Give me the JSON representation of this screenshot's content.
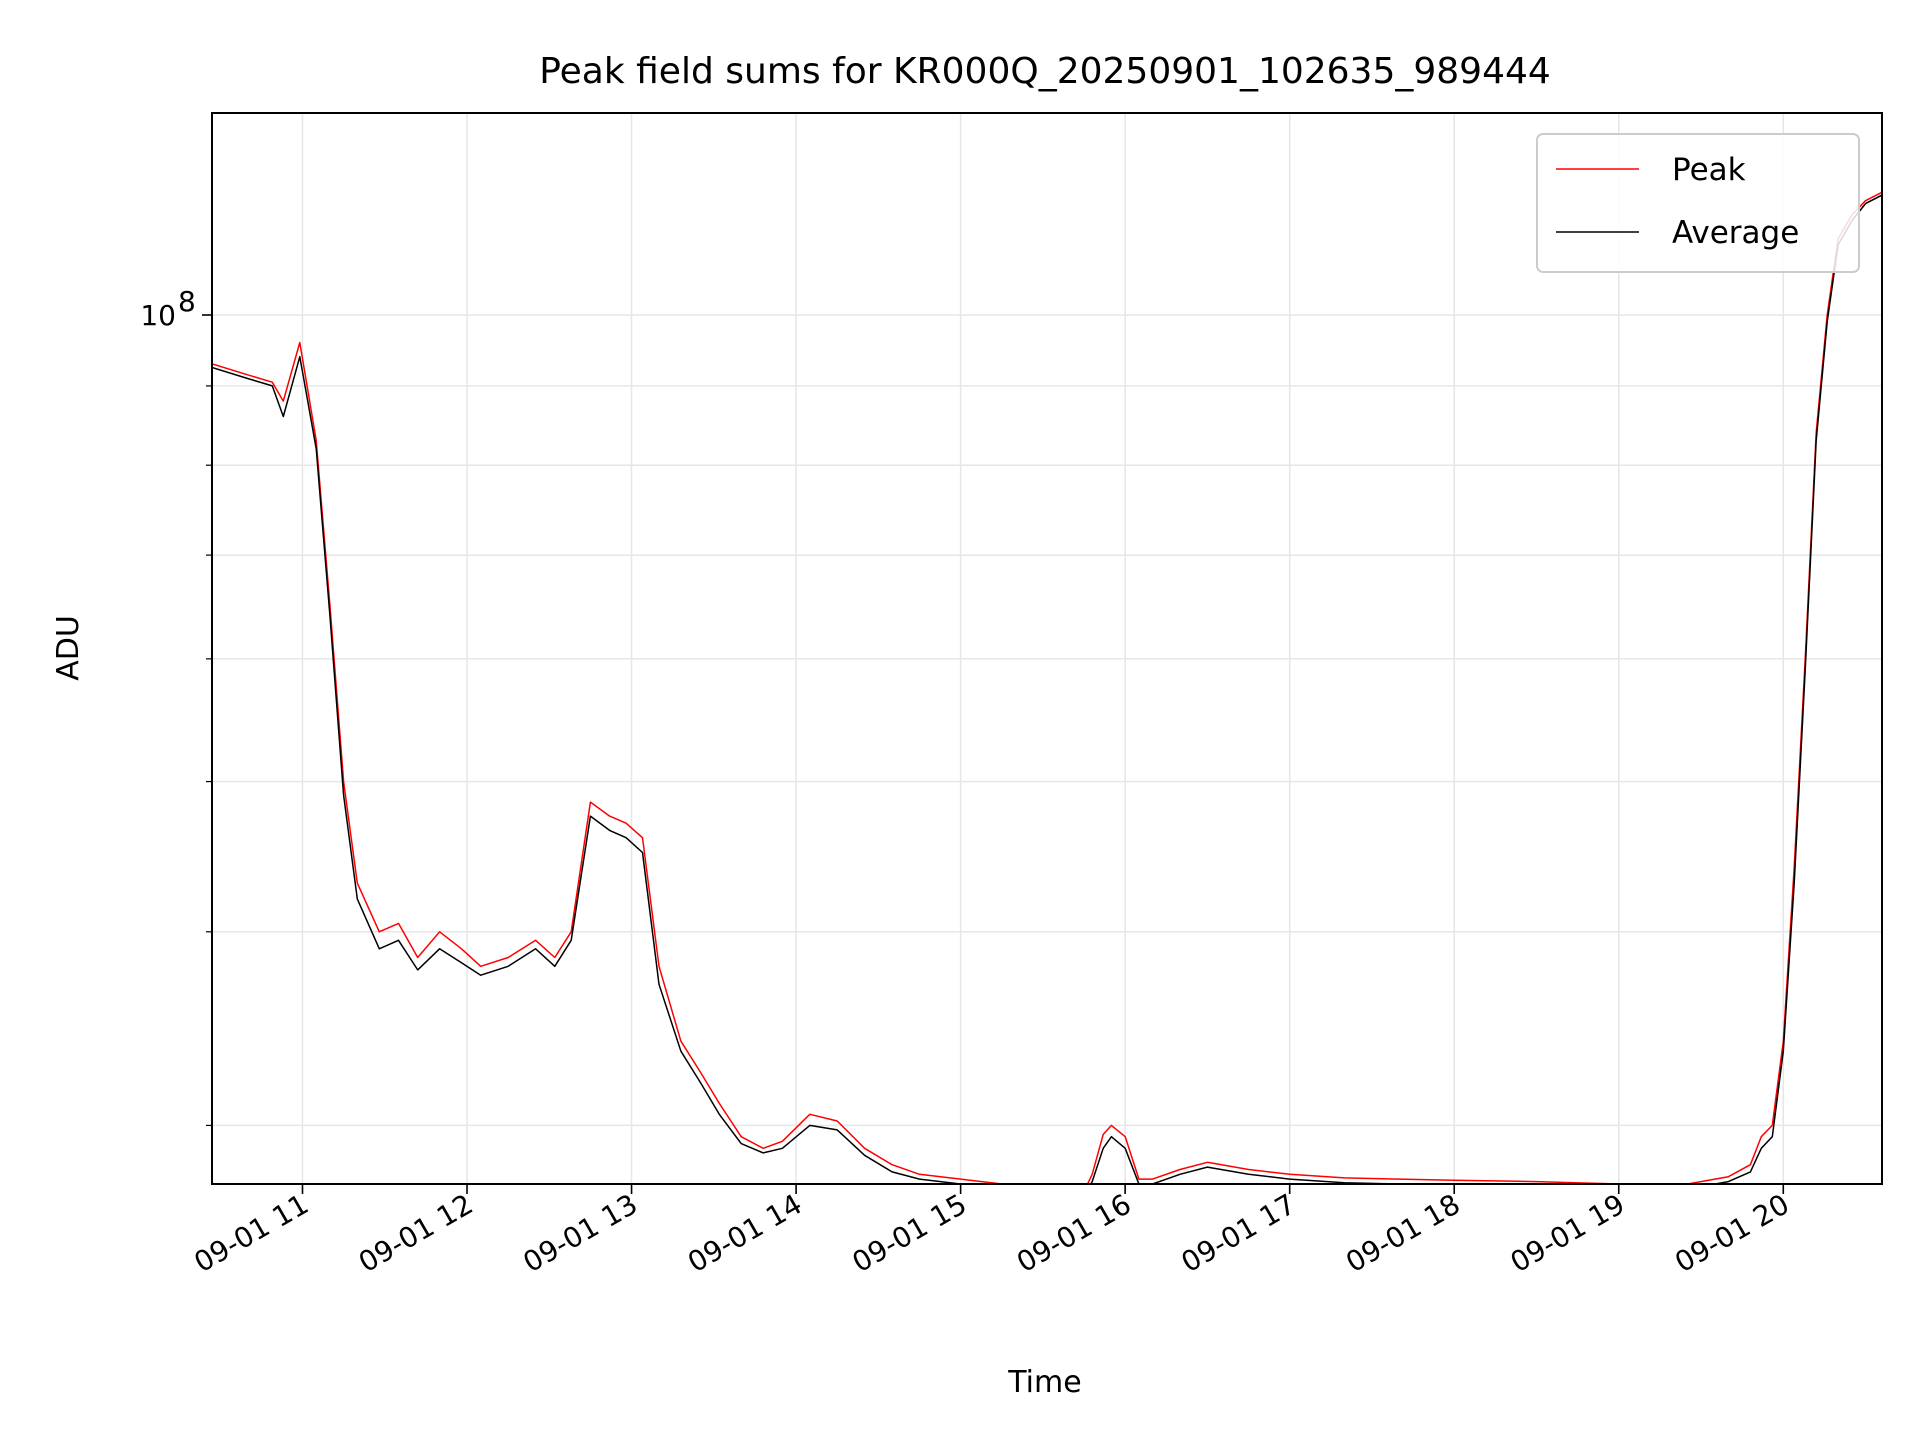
{
  "chart_data": {
    "type": "line",
    "title": "Peak field sums for KR000Q_20250901_102635_989444",
    "xlabel": "Time",
    "ylabel": "ADU",
    "yscale": "log",
    "ylim": [
      27500000,
      135000000
    ],
    "xlim": [
      "2025-09-01 10:27",
      "2025-09-01 20:36"
    ],
    "grid": true,
    "legend_position": "top-right",
    "x_ticks": [
      "09-01 11",
      "09-01 12",
      "09-01 13",
      "09-01 14",
      "09-01 15",
      "09-01 16",
      "09-01 17",
      "09-01 18",
      "09-01 19",
      "09-01 20"
    ],
    "y_ticks": [
      {
        "value": 100000000,
        "base": "10",
        "exp": "8"
      }
    ],
    "y_minor_ticks": [
      30000000,
      40000000,
      50000000,
      60000000,
      70000000,
      80000000,
      90000000
    ],
    "series": [
      {
        "name": "Peak",
        "color": "#ff0000",
        "x": [
          "2025-09-01 10:27",
          "2025-09-01 10:40",
          "2025-09-01 10:49",
          "2025-09-01 10:53",
          "2025-09-01 10:59",
          "2025-09-01 11:05",
          "2025-09-01 11:10",
          "2025-09-01 11:15",
          "2025-09-01 11:20",
          "2025-09-01 11:28",
          "2025-09-01 11:35",
          "2025-09-01 11:42",
          "2025-09-01 11:50",
          "2025-09-01 11:58",
          "2025-09-01 12:05",
          "2025-09-01 12:15",
          "2025-09-01 12:25",
          "2025-09-01 12:32",
          "2025-09-01 12:38",
          "2025-09-01 12:45",
          "2025-09-01 12:52",
          "2025-09-01 12:58",
          "2025-09-01 13:04",
          "2025-09-01 13:10",
          "2025-09-01 13:18",
          "2025-09-01 13:25",
          "2025-09-01 13:32",
          "2025-09-01 13:40",
          "2025-09-01 13:48",
          "2025-09-01 13:55",
          "2025-09-01 14:05",
          "2025-09-01 14:15",
          "2025-09-01 14:25",
          "2025-09-01 14:35",
          "2025-09-01 14:45",
          "2025-09-01 15:00",
          "2025-09-01 15:15",
          "2025-09-01 15:30",
          "2025-09-01 15:40",
          "2025-09-01 15:45",
          "2025-09-01 15:48",
          "2025-09-01 15:52",
          "2025-09-01 15:55",
          "2025-09-01 16:00",
          "2025-09-01 16:05",
          "2025-09-01 16:10",
          "2025-09-01 16:20",
          "2025-09-01 16:30",
          "2025-09-01 16:45",
          "2025-09-01 17:00",
          "2025-09-01 17:20",
          "2025-09-01 17:40",
          "2025-09-01 18:00",
          "2025-09-01 18:30",
          "2025-09-01 19:00",
          "2025-09-01 19:15",
          "2025-09-01 19:20",
          "2025-09-01 19:30",
          "2025-09-01 19:40",
          "2025-09-01 19:48",
          "2025-09-01 19:52",
          "2025-09-01 19:56",
          "2025-09-01 20:00",
          "2025-09-01 20:04",
          "2025-09-01 20:08",
          "2025-09-01 20:12",
          "2025-09-01 20:16",
          "2025-09-01 20:20",
          "2025-09-01 20:25",
          "2025-09-01 20:30",
          "2025-09-01 20:36"
        ],
        "y": [
          93000000,
          91500000,
          90500000,
          88000000,
          96000000,
          83000000,
          65000000,
          50000000,
          43000000,
          40000000,
          40500000,
          38500000,
          40000000,
          39000000,
          38000000,
          38500000,
          39500000,
          38500000,
          40000000,
          48500000,
          47500000,
          47000000,
          46000000,
          38000000,
          34000000,
          32500000,
          31000000,
          29500000,
          29000000,
          29300000,
          30500000,
          30200000,
          29000000,
          28300000,
          27900000,
          27700000,
          27500000,
          27400000,
          27300000,
          27200000,
          27900000,
          29600000,
          30000000,
          29500000,
          27700000,
          27700000,
          28100000,
          28400000,
          28100000,
          27900000,
          27750000,
          27700000,
          27650000,
          27600000,
          27500000,
          27300000,
          27400000,
          27600000,
          27800000,
          28300000,
          29500000,
          30000000,
          34000000,
          44000000,
          60000000,
          84000000,
          100000000,
          112000000,
          116000000,
          118500000,
          120000000
        ]
      },
      {
        "name": "Average",
        "color": "#000000",
        "x": [
          "2025-09-01 10:27",
          "2025-09-01 10:40",
          "2025-09-01 10:49",
          "2025-09-01 10:53",
          "2025-09-01 10:59",
          "2025-09-01 11:05",
          "2025-09-01 11:10",
          "2025-09-01 11:15",
          "2025-09-01 11:20",
          "2025-09-01 11:28",
          "2025-09-01 11:35",
          "2025-09-01 11:42",
          "2025-09-01 11:50",
          "2025-09-01 11:58",
          "2025-09-01 12:05",
          "2025-09-01 12:15",
          "2025-09-01 12:25",
          "2025-09-01 12:32",
          "2025-09-01 12:38",
          "2025-09-01 12:45",
          "2025-09-01 12:52",
          "2025-09-01 12:58",
          "2025-09-01 13:04",
          "2025-09-01 13:10",
          "2025-09-01 13:18",
          "2025-09-01 13:25",
          "2025-09-01 13:32",
          "2025-09-01 13:40",
          "2025-09-01 13:48",
          "2025-09-01 13:55",
          "2025-09-01 14:05",
          "2025-09-01 14:15",
          "2025-09-01 14:25",
          "2025-09-01 14:35",
          "2025-09-01 14:45",
          "2025-09-01 15:00",
          "2025-09-01 15:15",
          "2025-09-01 15:30",
          "2025-09-01 15:40",
          "2025-09-01 15:45",
          "2025-09-01 15:48",
          "2025-09-01 15:52",
          "2025-09-01 15:55",
          "2025-09-01 16:00",
          "2025-09-01 16:05",
          "2025-09-01 16:10",
          "2025-09-01 16:20",
          "2025-09-01 16:30",
          "2025-09-01 16:45",
          "2025-09-01 17:00",
          "2025-09-01 17:20",
          "2025-09-01 17:40",
          "2025-09-01 18:00",
          "2025-09-01 18:30",
          "2025-09-01 19:00",
          "2025-09-01 19:15",
          "2025-09-01 19:20",
          "2025-09-01 19:30",
          "2025-09-01 19:40",
          "2025-09-01 19:48",
          "2025-09-01 19:52",
          "2025-09-01 19:56",
          "2025-09-01 20:00",
          "2025-09-01 20:04",
          "2025-09-01 20:08",
          "2025-09-01 20:12",
          "2025-09-01 20:16",
          "2025-09-01 20:20",
          "2025-09-01 20:25",
          "2025-09-01 20:30",
          "2025-09-01 20:36"
        ],
        "y": [
          92500000,
          91000000,
          90000000,
          86000000,
          94000000,
          82000000,
          64000000,
          49000000,
          42000000,
          39000000,
          39500000,
          37800000,
          39000000,
          38200000,
          37500000,
          38000000,
          39000000,
          38000000,
          39500000,
          47500000,
          46500000,
          46000000,
          45000000,
          37000000,
          33500000,
          32000000,
          30500000,
          29200000,
          28800000,
          29000000,
          30000000,
          29800000,
          28700000,
          28000000,
          27700000,
          27500000,
          27300000,
          27250000,
          27150000,
          27050000,
          27600000,
          29000000,
          29500000,
          29000000,
          27500000,
          27500000,
          27900000,
          28200000,
          27900000,
          27700000,
          27550000,
          27500000,
          27450000,
          27400000,
          27300000,
          27150000,
          27250000,
          27400000,
          27600000,
          28000000,
          29000000,
          29500000,
          33500000,
          43000000,
          59000000,
          83000000,
          99000000,
          111000000,
          115000000,
          118000000,
          119500000
        ]
      }
    ]
  }
}
